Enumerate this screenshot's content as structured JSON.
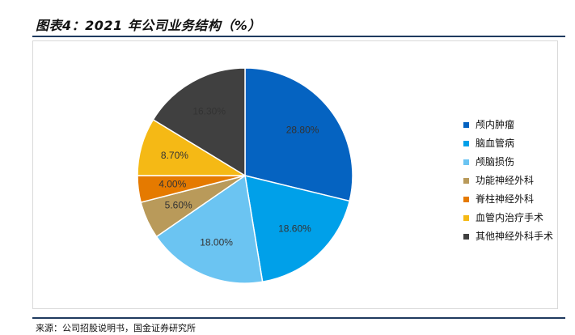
{
  "figure": {
    "title": "图表4：2021 年公司业务结构（%）",
    "source": "来源：公司招股说明书，国金证券研究所"
  },
  "chart_data": {
    "type": "pie",
    "title": "",
    "legend_position": "right",
    "slices": [
      {
        "name": "颅内肿瘤",
        "value": 28.8,
        "label": "28.80%",
        "color": "#0563c1"
      },
      {
        "name": "脑血管病",
        "value": 18.6,
        "label": "18.60%",
        "color": "#00a0e9"
      },
      {
        "name": "颅脑损伤",
        "value": 18.0,
        "label": "18.00%",
        "color": "#6bc4f2"
      },
      {
        "name": "功能神经外科",
        "value": 5.6,
        "label": "5.60%",
        "color": "#b99a5a"
      },
      {
        "name": "脊柱神经外科",
        "value": 4.0,
        "label": "4.00%",
        "color": "#e57a00"
      },
      {
        "name": "血管内治疗手术",
        "value": 8.7,
        "label": "8.70%",
        "color": "#f5b915"
      },
      {
        "name": "其他神经外科手术",
        "value": 16.3,
        "label": "16.30%",
        "color": "#404040"
      }
    ]
  }
}
